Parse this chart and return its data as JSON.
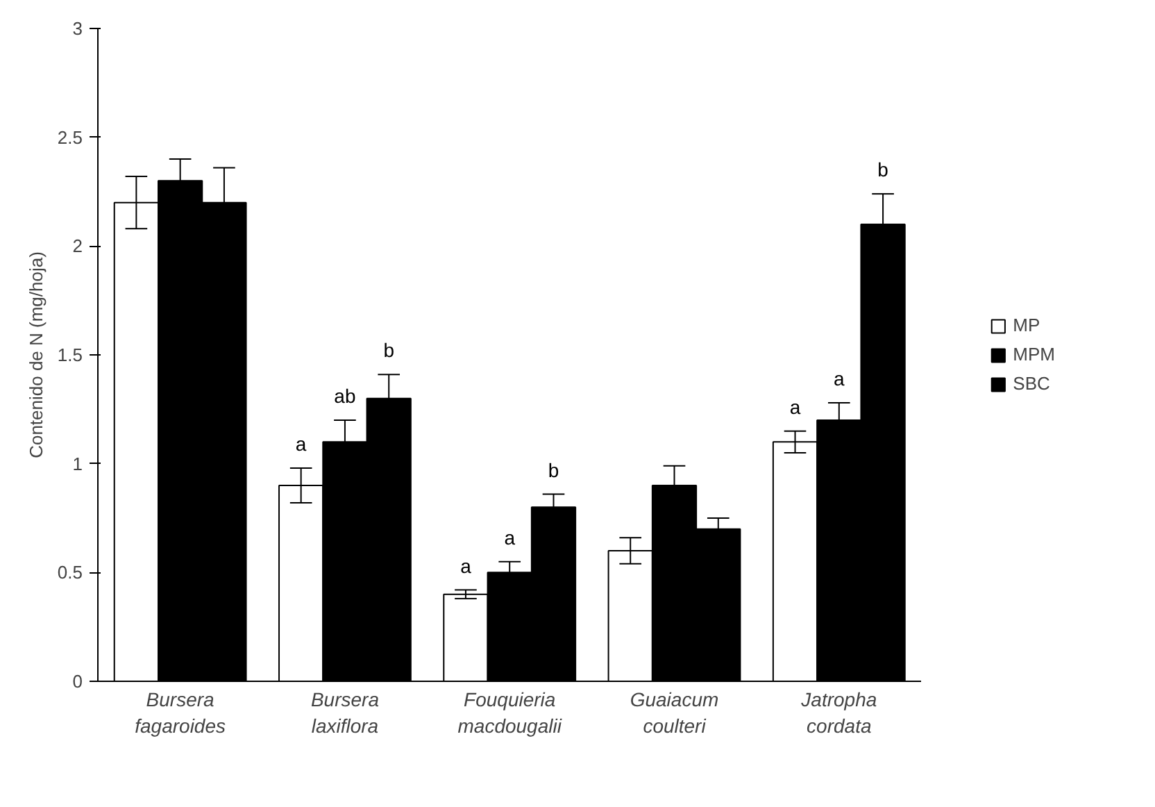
{
  "chart_data": {
    "type": "bar",
    "ylabel": "Contenido de N (mg/hoja)",
    "categories": [
      "Bursera\nfagaroides",
      "Bursera\nlaxiflora",
      "Fouquieria\nmacdougalii",
      "Guaiacum\ncoulteri",
      "Jatropha\ncordata"
    ],
    "series": [
      {
        "name": "MP",
        "color": "#ffffff",
        "values": [
          2.2,
          0.9,
          0.4,
          0.6,
          1.1
        ],
        "errors": [
          0.12,
          0.08,
          0.02,
          0.06,
          0.05
        ],
        "value_labels": [
          null,
          "a",
          "a",
          null,
          "a"
        ]
      },
      {
        "name": "MPM",
        "color": "#000000",
        "values": [
          2.3,
          1.1,
          0.5,
          0.9,
          1.2
        ],
        "errors": [
          0.1,
          0.1,
          0.05,
          0.09,
          0.08
        ],
        "value_labels": [
          null,
          "ab",
          "a",
          null,
          "a"
        ]
      },
      {
        "name": "SBC",
        "color": "#000000",
        "values": [
          2.2,
          1.3,
          0.8,
          0.7,
          2.1
        ],
        "errors": [
          0.16,
          0.11,
          0.06,
          0.05,
          0.14
        ],
        "value_labels": [
          null,
          "b",
          "b",
          null,
          "b"
        ]
      }
    ],
    "ylim": [
      0,
      3
    ],
    "yticks": [
      0,
      0.5,
      1,
      1.5,
      2,
      2.5,
      3
    ],
    "grid": false,
    "legend": "right"
  }
}
